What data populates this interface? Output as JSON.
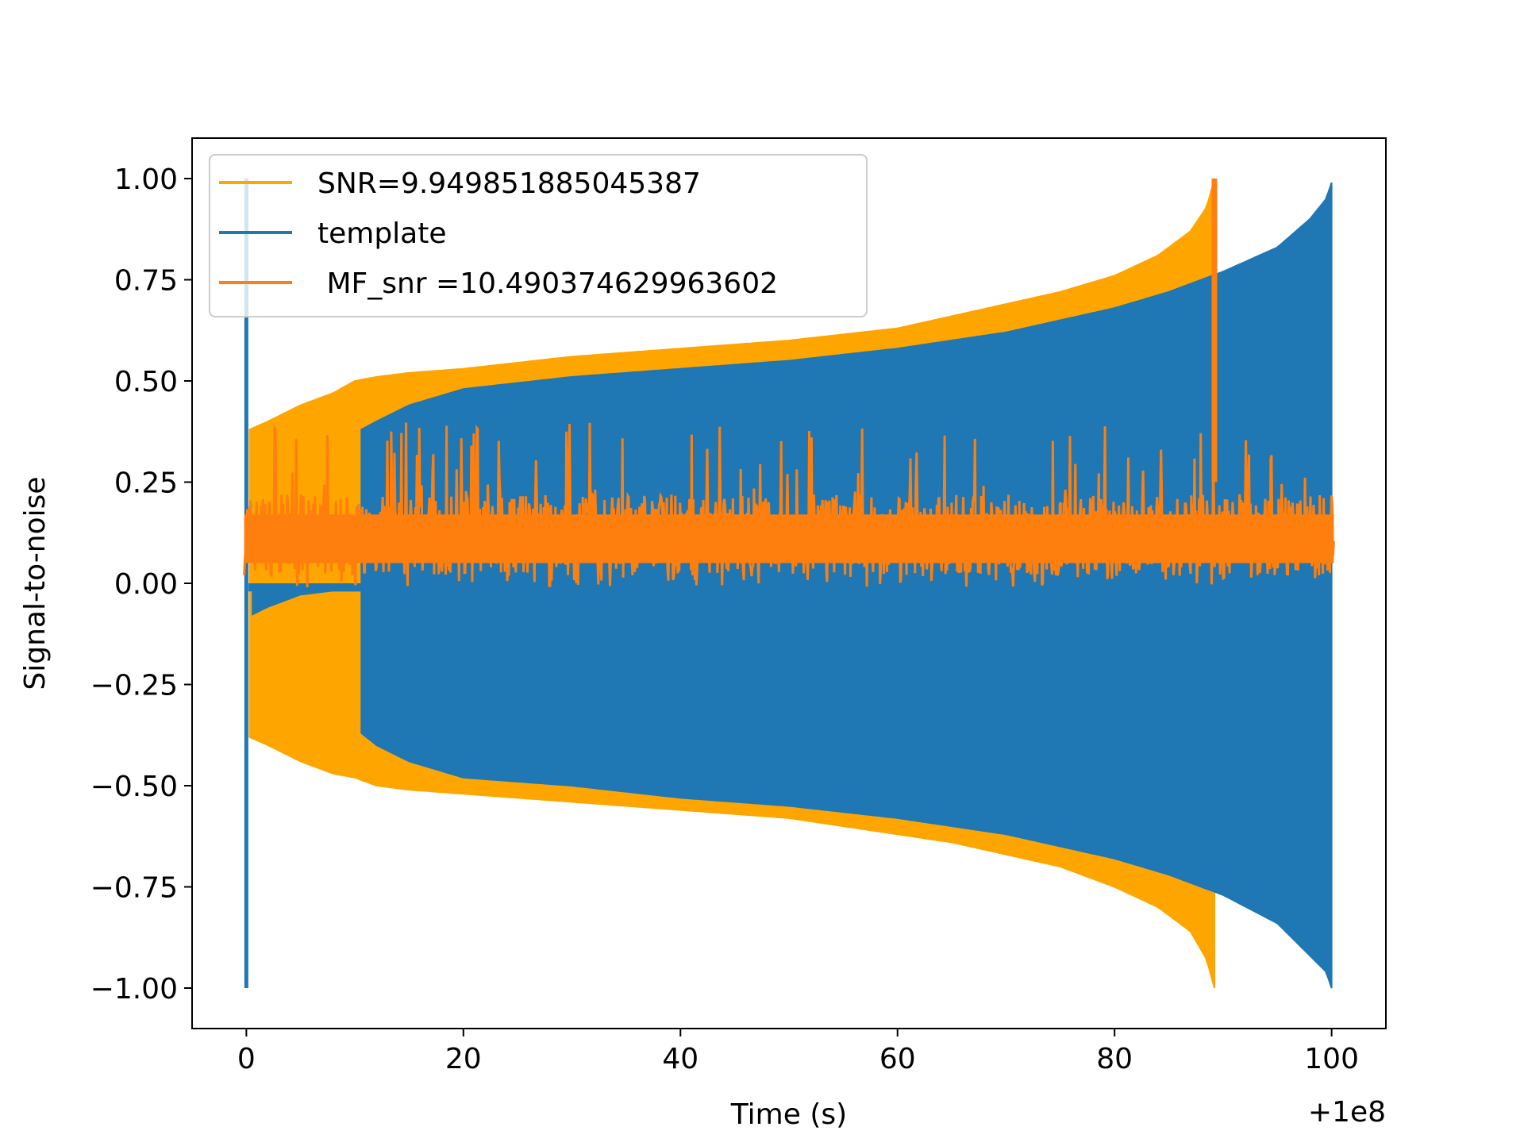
{
  "chart_data": {
    "type": "line",
    "title": "",
    "xlabel": "Time (s)",
    "ylabel": "Signal-to-noise",
    "x_offset_label": "+1e8",
    "xlim": [
      -5,
      105
    ],
    "ylim": [
      -1.1,
      1.1
    ],
    "xticks": [
      0,
      20,
      40,
      60,
      80,
      100
    ],
    "xtick_labels": [
      "0",
      "20",
      "40",
      "60",
      "80",
      "100"
    ],
    "yticks": [
      1.0,
      0.75,
      0.5,
      0.25,
      0.0,
      -0.25,
      -0.5,
      -0.75,
      -1.0
    ],
    "ytick_labels": [
      "1.00",
      "0.75",
      "0.50",
      "0.25",
      "0.00",
      "−0.25",
      "−0.50",
      "−0.75",
      "−1.00"
    ],
    "grid": false,
    "legend_position": "top-left",
    "series": [
      {
        "name": "SNR=9.949851885045387",
        "color": "#FFA500",
        "style": "oscillating-envelope",
        "envelope_upper": [
          [
            0.3,
            0.38
          ],
          [
            2,
            0.4
          ],
          [
            5,
            0.44
          ],
          [
            8,
            0.47
          ],
          [
            10,
            0.5
          ],
          [
            12,
            0.51
          ],
          [
            15,
            0.52
          ],
          [
            20,
            0.53
          ],
          [
            30,
            0.56
          ],
          [
            40,
            0.58
          ],
          [
            50,
            0.6
          ],
          [
            60,
            0.63
          ],
          [
            65,
            0.66
          ],
          [
            70,
            0.69
          ],
          [
            75,
            0.72
          ],
          [
            80,
            0.76
          ],
          [
            84,
            0.81
          ],
          [
            87,
            0.87
          ],
          [
            88.5,
            0.93
          ],
          [
            89.2,
            1.0
          ],
          [
            89.3,
            0.0
          ]
        ],
        "envelope_lower": [
          [
            0.3,
            -0.38
          ],
          [
            2,
            -0.4
          ],
          [
            5,
            -0.44
          ],
          [
            8,
            -0.47
          ],
          [
            10,
            -0.48
          ],
          [
            12,
            -0.5
          ],
          [
            15,
            -0.51
          ],
          [
            20,
            -0.52
          ],
          [
            30,
            -0.54
          ],
          [
            40,
            -0.56
          ],
          [
            50,
            -0.58
          ],
          [
            60,
            -0.62
          ],
          [
            65,
            -0.64
          ],
          [
            70,
            -0.67
          ],
          [
            75,
            -0.7
          ],
          [
            80,
            -0.75
          ],
          [
            84,
            -0.8
          ],
          [
            87,
            -0.86
          ],
          [
            88.5,
            -0.93
          ],
          [
            89.2,
            -1.0
          ],
          [
            89.3,
            0.0
          ]
        ],
        "inner_lower": [
          [
            0.5,
            -0.08
          ],
          [
            2,
            -0.06
          ],
          [
            5,
            -0.03
          ],
          [
            8,
            -0.02
          ],
          [
            10.5,
            -0.02
          ]
        ]
      },
      {
        "name": "template",
        "color": "#1F77B4",
        "style": "oscillating-envelope",
        "spike": {
          "x": 0.0,
          "y_min": -1.0,
          "y_max": 1.0
        },
        "envelope_upper": [
          [
            10.6,
            0.38
          ],
          [
            12,
            0.4
          ],
          [
            15,
            0.44
          ],
          [
            20,
            0.48
          ],
          [
            30,
            0.51
          ],
          [
            40,
            0.53
          ],
          [
            50,
            0.55
          ],
          [
            60,
            0.58
          ],
          [
            70,
            0.62
          ],
          [
            80,
            0.68
          ],
          [
            85,
            0.72
          ],
          [
            90,
            0.77
          ],
          [
            95,
            0.83
          ],
          [
            98,
            0.9
          ],
          [
            99.5,
            0.95
          ],
          [
            100,
            0.99
          ]
        ],
        "envelope_lower": [
          [
            10.6,
            -0.37
          ],
          [
            12,
            -0.4
          ],
          [
            15,
            -0.44
          ],
          [
            20,
            -0.48
          ],
          [
            30,
            -0.5
          ],
          [
            40,
            -0.53
          ],
          [
            50,
            -0.55
          ],
          [
            60,
            -0.58
          ],
          [
            70,
            -0.62
          ],
          [
            80,
            -0.68
          ],
          [
            85,
            -0.72
          ],
          [
            90,
            -0.77
          ],
          [
            95,
            -0.84
          ],
          [
            98,
            -0.92
          ],
          [
            99.5,
            -0.96
          ],
          [
            100,
            -1.0
          ]
        ]
      },
      {
        "name": " MF_snr =10.490374629963602",
        "color": "#FF7F0E",
        "style": "noise-band",
        "band": {
          "x_start": -0.2,
          "x_end": 100.2,
          "low": 0.02,
          "high": 0.22,
          "peak_max": 0.4
        },
        "spike": {
          "x": 89.2,
          "y_min": 0.25,
          "y_max": 1.0
        }
      }
    ]
  }
}
